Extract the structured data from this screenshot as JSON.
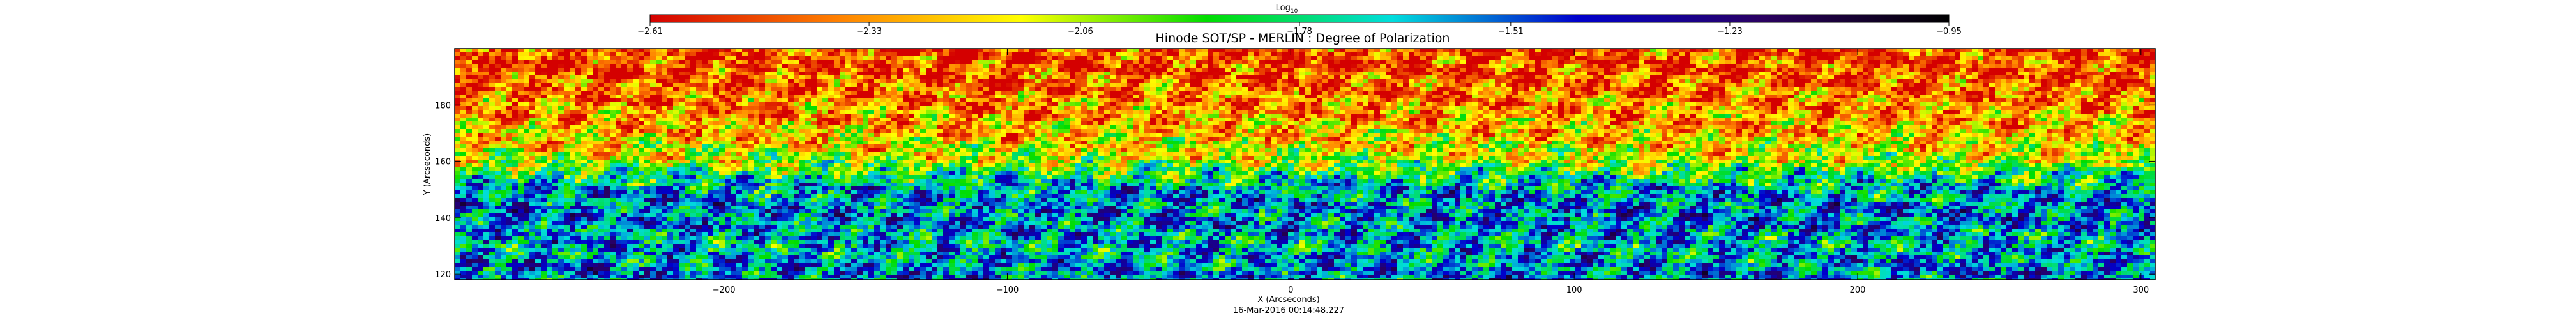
{
  "chart_data": {
    "type": "heatmap",
    "title": "Hinode SOT/SP - MERLIN : Degree of Polarization",
    "xlabel": "X (Arcseconds)",
    "ylabel": "Y (Arcseconds)",
    "timestamp": "16-Mar-2016 00:14:48.227",
    "x_range": [
      -295,
      305
    ],
    "y_range": [
      118,
      200
    ],
    "x_ticks": [
      {
        "value": -200,
        "label": "−200"
      },
      {
        "value": -100,
        "label": "−100"
      },
      {
        "value": 0,
        "label": "0"
      },
      {
        "value": 100,
        "label": "100"
      },
      {
        "value": 200,
        "label": "200"
      },
      {
        "value": 300,
        "label": "300"
      }
    ],
    "y_ticks": [
      {
        "value": 120,
        "label": "120"
      },
      {
        "value": 140,
        "label": "140"
      },
      {
        "value": 160,
        "label": "160"
      },
      {
        "value": 180,
        "label": "180"
      }
    ],
    "colorbar": {
      "label_base": "Log",
      "label_sub": "10",
      "range": [
        -2.61,
        -0.95
      ],
      "ticks": [
        {
          "value": -2.61,
          "label": "−2.61"
        },
        {
          "value": -2.33,
          "label": "−2.33"
        },
        {
          "value": -2.06,
          "label": "−2.06"
        },
        {
          "value": -1.78,
          "label": "−1.78"
        },
        {
          "value": -1.51,
          "label": "−1.51"
        },
        {
          "value": -1.23,
          "label": "−1.23"
        },
        {
          "value": -0.95,
          "label": "−0.95"
        }
      ],
      "colors": [
        "#d40000",
        "#ff7f00",
        "#ffff00",
        "#00dd00",
        "#00dddd",
        "#0000cc",
        "#2a0060",
        "#000000"
      ]
    },
    "field_description": "Log10 degree of polarization; upper band (Y>160) mostly orange/red, lower band (Y<155) mostly blue/green with orange patches.",
    "field_profile": [
      {
        "y": 200,
        "level": -2.48
      },
      {
        "y": 190,
        "level": -2.45
      },
      {
        "y": 180,
        "level": -2.35
      },
      {
        "y": 170,
        "level": -2.25
      },
      {
        "y": 160,
        "level": -2.05
      },
      {
        "y": 155,
        "level": -1.8
      },
      {
        "y": 150,
        "level": -1.62
      },
      {
        "y": 140,
        "level": -1.55
      },
      {
        "y": 130,
        "level": -1.65
      },
      {
        "y": 120,
        "level": -1.55
      }
    ]
  }
}
